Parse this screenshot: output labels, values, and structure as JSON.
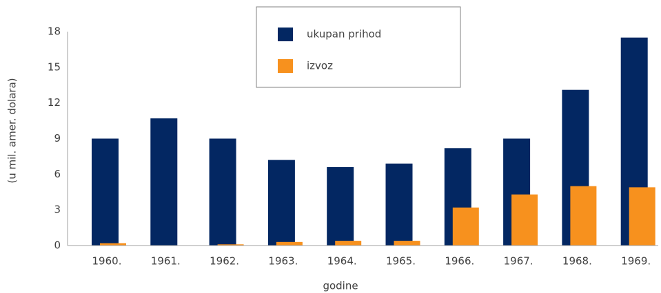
{
  "chart_data": {
    "type": "bar",
    "x_label": "godine",
    "y_label": "(u mil. amer. dolara)",
    "categories": [
      "1960.",
      "1961.",
      "1962.",
      "1963.",
      "1964.",
      "1965.",
      "1966.",
      "1967.",
      "1968.",
      "1969."
    ],
    "series": [
      {
        "name": "ukupan prihod",
        "color": "#032762",
        "values": [
          9.0,
          10.7,
          9.0,
          7.2,
          6.6,
          6.9,
          8.2,
          9.0,
          13.1,
          17.5
        ]
      },
      {
        "name": "izvoz",
        "color": "#f7911e",
        "values": [
          0.2,
          0,
          0.1,
          0.3,
          0.4,
          0.4,
          3.2,
          4.3,
          5.0,
          4.9
        ]
      }
    ],
    "ylim": [
      0,
      18
    ],
    "yticks": [
      0,
      3,
      6,
      9,
      12,
      15,
      18
    ],
    "grid": false,
    "legend": "top"
  }
}
